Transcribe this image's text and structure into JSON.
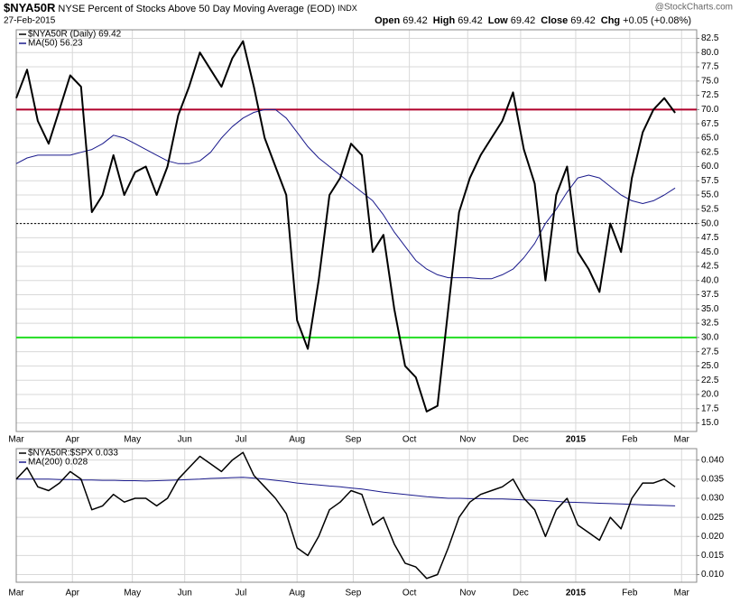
{
  "header": {
    "symbol": "$NYA50R",
    "description": "NYSE Percent of Stocks Above 50 Day Moving Average (EOD)",
    "exchange": "INDX",
    "date": "27-Feb-2015",
    "watermark": "@StockCharts.com",
    "quote": [
      {
        "label": "Open",
        "value": "69.42"
      },
      {
        "label": "High",
        "value": "69.42"
      },
      {
        "label": "Low",
        "value": "69.42"
      },
      {
        "label": "Close",
        "value": "69.42"
      },
      {
        "label": "Chg",
        "value": "+0.05 (+0.08%)"
      }
    ]
  },
  "chart_data": [
    {
      "type": "line",
      "xlim": [
        0,
        63
      ],
      "ylim": [
        13.5,
        84
      ],
      "grid": true,
      "xticks": [
        {
          "value": 0,
          "label": "Mar"
        },
        {
          "value": 5.2,
          "label": "Apr"
        },
        {
          "value": 10.75,
          "label": "May"
        },
        {
          "value": 15.6,
          "label": "Jun"
        },
        {
          "value": 20.8,
          "label": "Jul"
        },
        {
          "value": 26,
          "label": "Aug"
        },
        {
          "value": 31.2,
          "label": "Sep"
        },
        {
          "value": 36.4,
          "label": "Oct"
        },
        {
          "value": 41.8,
          "label": "Nov"
        },
        {
          "value": 46.7,
          "label": "Dec"
        },
        {
          "value": 51.8,
          "label": "2015"
        },
        {
          "value": 56.8,
          "label": "Feb"
        },
        {
          "value": 61.6,
          "label": "Mar"
        }
      ],
      "yticks": [
        {
          "value": 15,
          "label": "15.0"
        },
        {
          "value": 17.5,
          "label": "17.5"
        },
        {
          "value": 20,
          "label": "20.0"
        },
        {
          "value": 22.5,
          "label": "22.5"
        },
        {
          "value": 25,
          "label": "25.0"
        },
        {
          "value": 27.5,
          "label": "27.5"
        },
        {
          "value": 30,
          "label": "30.0"
        },
        {
          "value": 32.5,
          "label": "32.5"
        },
        {
          "value": 35,
          "label": "35.0"
        },
        {
          "value": 37.5,
          "label": "37.5"
        },
        {
          "value": 40,
          "label": "40.0"
        },
        {
          "value": 42.5,
          "label": "42.5"
        },
        {
          "value": 45,
          "label": "45.0"
        },
        {
          "value": 47.5,
          "label": "47.5"
        },
        {
          "value": 50,
          "label": "50.0"
        },
        {
          "value": 52.5,
          "label": "52.5"
        },
        {
          "value": 55,
          "label": "55.0"
        },
        {
          "value": 57.5,
          "label": "57.5"
        },
        {
          "value": 60,
          "label": "60.0"
        },
        {
          "value": 62.5,
          "label": "62.5"
        },
        {
          "value": 65,
          "label": "65.0"
        },
        {
          "value": 67.5,
          "label": "67.5"
        },
        {
          "value": 70,
          "label": "70.0"
        },
        {
          "value": 72.5,
          "label": "72.5"
        },
        {
          "value": 75,
          "label": "75.0"
        },
        {
          "value": 77.5,
          "label": "77.5"
        },
        {
          "value": 80,
          "label": "80.0"
        },
        {
          "value": 82.5,
          "label": "82.5"
        }
      ],
      "hlines": [
        {
          "value": 70,
          "color": "#b0002a",
          "style": "solid"
        },
        {
          "value": 50,
          "color": "#000000",
          "style": "dotted"
        },
        {
          "value": 30,
          "color": "#22dd22",
          "style": "solid"
        }
      ],
      "series": [
        {
          "name": "$NYA50R (Daily) 69.42",
          "color": "#000000",
          "width": 2,
          "values": [
            72,
            77,
            68,
            64,
            70,
            76,
            74,
            52,
            55,
            62,
            55,
            59,
            60,
            55,
            60,
            69,
            74,
            80,
            77,
            74,
            79,
            82,
            74,
            65,
            60,
            55,
            33,
            28,
            40,
            55,
            58,
            64,
            62,
            45,
            48,
            35,
            25,
            23,
            17,
            18,
            35,
            52,
            58,
            62,
            65,
            68,
            73,
            63,
            57,
            40,
            55,
            60,
            45,
            42,
            38,
            50,
            45,
            58,
            66,
            70,
            72,
            69.42
          ]
        },
        {
          "name": "MA(50) 56.23",
          "color": "#1a1a8c",
          "width": 1,
          "values": [
            60.5,
            61.5,
            62,
            62,
            62,
            62,
            62.5,
            63,
            64,
            65.5,
            65,
            64,
            63,
            62,
            61,
            60.5,
            60.5,
            61,
            62.5,
            65,
            67,
            68.5,
            69.5,
            70,
            70,
            68.5,
            66,
            63.5,
            61.5,
            60,
            58.5,
            57,
            55.5,
            54,
            51.5,
            48.5,
            46,
            43.5,
            42,
            41,
            40.5,
            40.5,
            40.5,
            40.3,
            40.3,
            41,
            42,
            44,
            46.5,
            50,
            52.5,
            55.5,
            58,
            58.5,
            58,
            56.5,
            55,
            54,
            53.5,
            54,
            55,
            56.23
          ]
        }
      ]
    },
    {
      "type": "line",
      "xlim": [
        0,
        63
      ],
      "ylim": [
        0.008,
        0.043
      ],
      "grid": true,
      "xticks": [
        {
          "value": 0,
          "label": "Mar"
        },
        {
          "value": 5.2,
          "label": "Apr"
        },
        {
          "value": 10.75,
          "label": "May"
        },
        {
          "value": 15.6,
          "label": "Jun"
        },
        {
          "value": 20.8,
          "label": "Jul"
        },
        {
          "value": 26,
          "label": "Aug"
        },
        {
          "value": 31.2,
          "label": "Sep"
        },
        {
          "value": 36.4,
          "label": "Oct"
        },
        {
          "value": 41.8,
          "label": "Nov"
        },
        {
          "value": 46.7,
          "label": "Dec"
        },
        {
          "value": 51.8,
          "label": "2015"
        },
        {
          "value": 56.8,
          "label": "Feb"
        },
        {
          "value": 61.6,
          "label": "Mar"
        }
      ],
      "yticks": [
        {
          "value": 0.01,
          "label": "0.010"
        },
        {
          "value": 0.015,
          "label": "0.015"
        },
        {
          "value": 0.02,
          "label": "0.020"
        },
        {
          "value": 0.025,
          "label": "0.025"
        },
        {
          "value": 0.03,
          "label": "0.030"
        },
        {
          "value": 0.035,
          "label": "0.035"
        },
        {
          "value": 0.04,
          "label": "0.040"
        }
      ],
      "series": [
        {
          "name": "$NYA50R:$SPX 0.033",
          "color": "#000000",
          "width": 1.5,
          "values": [
            0.035,
            0.038,
            0.033,
            0.032,
            0.034,
            0.037,
            0.035,
            0.027,
            0.028,
            0.031,
            0.029,
            0.03,
            0.03,
            0.028,
            0.03,
            0.035,
            0.038,
            0.041,
            0.039,
            0.037,
            0.04,
            0.042,
            0.036,
            0.033,
            0.03,
            0.026,
            0.017,
            0.015,
            0.02,
            0.027,
            0.029,
            0.032,
            0.031,
            0.023,
            0.025,
            0.018,
            0.013,
            0.012,
            0.009,
            0.01,
            0.017,
            0.025,
            0.029,
            0.031,
            0.032,
            0.033,
            0.035,
            0.03,
            0.027,
            0.02,
            0.027,
            0.03,
            0.023,
            0.021,
            0.019,
            0.025,
            0.022,
            0.03,
            0.034,
            0.034,
            0.035,
            0.033
          ]
        },
        {
          "name": "MA(200) 0.028",
          "color": "#1a1a8c",
          "width": 1,
          "values": [
            0.035,
            0.035,
            0.035,
            0.035,
            0.0349,
            0.0349,
            0.0348,
            0.0348,
            0.0347,
            0.0347,
            0.0346,
            0.0346,
            0.0345,
            0.0346,
            0.0347,
            0.0348,
            0.0349,
            0.035,
            0.0352,
            0.0353,
            0.0354,
            0.0355,
            0.0353,
            0.035,
            0.0347,
            0.0344,
            0.034,
            0.0337,
            0.0335,
            0.0332,
            0.033,
            0.0327,
            0.0324,
            0.032,
            0.0316,
            0.0313,
            0.031,
            0.0307,
            0.0304,
            0.0302,
            0.03,
            0.03,
            0.0299,
            0.0299,
            0.0298,
            0.0298,
            0.0297,
            0.0296,
            0.0295,
            0.0294,
            0.0292,
            0.029,
            0.0289,
            0.0288,
            0.0287,
            0.0286,
            0.0285,
            0.0284,
            0.0283,
            0.0282,
            0.0281,
            0.028
          ]
        }
      ]
    }
  ]
}
